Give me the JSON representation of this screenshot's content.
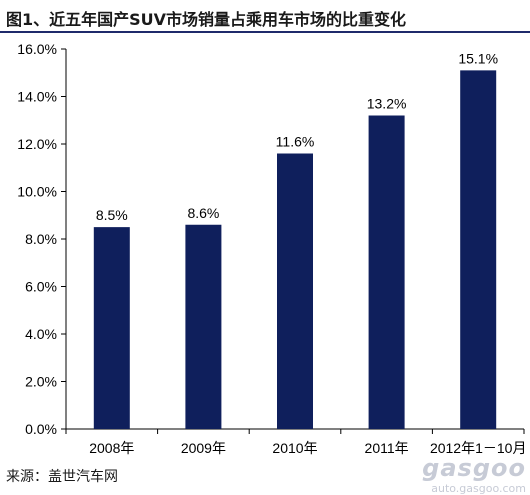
{
  "title": "图1、近五年国产SUV市场销量占乘用车市场的比重变化",
  "source": "来源：盖世汽车网",
  "watermark": {
    "logo": "gasgoo",
    "url": "auto.gasgoo.com"
  },
  "colors": {
    "bar": "#0f1f5c",
    "title_rule": "#1f2a6b",
    "axis": "#000000"
  },
  "chart_data": {
    "type": "bar",
    "title": "图1、近五年国产SUV市场销量占乘用车市场的比重变化",
    "categories": [
      "2008年",
      "2009年",
      "2010年",
      "2011年",
      "2012年1－10月"
    ],
    "values": [
      8.5,
      8.6,
      11.6,
      13.2,
      15.1
    ],
    "data_labels": [
      "8.5%",
      "8.6%",
      "11.6%",
      "13.2%",
      "15.1%"
    ],
    "unit": "%",
    "ylim": [
      0,
      16
    ],
    "yticks": [
      0,
      2,
      4,
      6,
      8,
      10,
      12,
      14,
      16
    ],
    "ytick_labels": [
      "0.0%",
      "2.0%",
      "4.0%",
      "6.0%",
      "8.0%",
      "10.0%",
      "12.0%",
      "14.0%",
      "16.0%"
    ],
    "xlabel": "",
    "ylabel": "",
    "grid": false,
    "legend": "none"
  }
}
